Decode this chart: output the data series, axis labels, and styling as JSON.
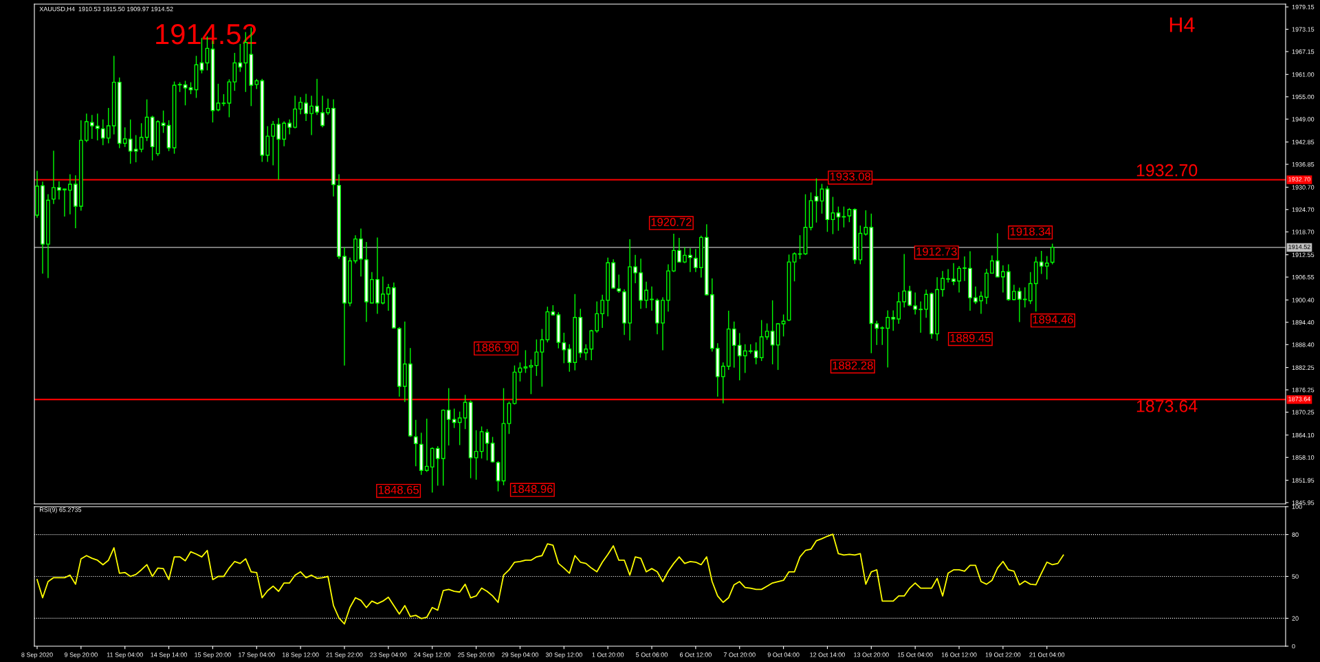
{
  "chart_data": [
    {
      "type": "candlestick",
      "title": "XAUUSD,H4  1910.53 1915.50 1909.97 1914.52",
      "color": "#00ff00",
      "categories": [
        null,
        null,
        null,
        null,
        null,
        null,
        null,
        null,
        null,
        null,
        null,
        null,
        null,
        null,
        null,
        null,
        null,
        null,
        null,
        null,
        null,
        null,
        null,
        null,
        null,
        null,
        null,
        null,
        null,
        null,
        null,
        null,
        null,
        null,
        null,
        null,
        null,
        null,
        null,
        null,
        null,
        null,
        null,
        null,
        null,
        null,
        null,
        null,
        null,
        null,
        null,
        null,
        null,
        null,
        null,
        null,
        null,
        null,
        null,
        null,
        null,
        null,
        null,
        null,
        null,
        null,
        null,
        null,
        null,
        null,
        null,
        null,
        null,
        null,
        null,
        null,
        null,
        null,
        null,
        null,
        null,
        null,
        null,
        null,
        null,
        null,
        null,
        null,
        null,
        null,
        null,
        null,
        null,
        null,
        null,
        null,
        null,
        null,
        null,
        null,
        null,
        null,
        null,
        null,
        null,
        null,
        null,
        null,
        null,
        null,
        null,
        null,
        null,
        null,
        null,
        null,
        null,
        null,
        null,
        null,
        null,
        null,
        null,
        null,
        null,
        null,
        null,
        null,
        null,
        null,
        null,
        null,
        null,
        null,
        null,
        null,
        null,
        null,
        null,
        null,
        null,
        null,
        null,
        null,
        null,
        null,
        null,
        null,
        null,
        null,
        null,
        null,
        null,
        null,
        null,
        null,
        null,
        null,
        null,
        null,
        null,
        null,
        null,
        null,
        null,
        null,
        null,
        null,
        null,
        null,
        null,
        null,
        null,
        null,
        null,
        null,
        null,
        null,
        null,
        null,
        null,
        null,
        null,
        null,
        null,
        null,
        null,
        null,
        null,
        null,
        null,
        null,
        null,
        null,
        null,
        null,
        null,
        null,
        null,
        null,
        null,
        null,
        null,
        null,
        null,
        null,
        null,
        null,
        null,
        null,
        null,
        null,
        null,
        null,
        null,
        null,
        null,
        null,
        null,
        null,
        null,
        null,
        null,
        null,
        null,
        null,
        null,
        null
      ],
      "ohlc": [
        [
          1923.2,
          1935.1,
          1922.5,
          1931.0
        ],
        [
          1931.1,
          1932.2,
          1907.5,
          1915.4
        ],
        [
          1915.4,
          1928.8,
          1906.3,
          1927.2
        ],
        [
          1927.5,
          1940.5,
          1926.2,
          1930.6
        ],
        [
          1930.6,
          1932.3,
          1927.4,
          1929.9
        ],
        [
          1930.2,
          1930.3,
          1922.8,
          1930.0
        ],
        [
          1929.9,
          1934.2,
          1923.4,
          1931.5
        ],
        [
          1931.5,
          1933.9,
          1919.7,
          1925.6
        ],
        [
          1925.6,
          1948.7,
          1924.4,
          1943.3
        ],
        [
          1943.3,
          1950.5,
          1942.8,
          1948.3
        ],
        [
          1948.1,
          1950.1,
          1943.7,
          1947.2
        ],
        [
          1947.1,
          1950.5,
          1943.3,
          1946.5
        ],
        [
          1946.4,
          1948.9,
          1942.0,
          1943.9
        ],
        [
          1943.9,
          1952.0,
          1942.5,
          1947.2
        ],
        [
          1947.2,
          1966.0,
          1944.9,
          1958.9
        ],
        [
          1958.9,
          1960.2,
          1941.2,
          1942.5
        ],
        [
          1942.5,
          1946.8,
          1941.5,
          1943.7
        ],
        [
          1943.6,
          1948.9,
          1937.0,
          1940.4
        ],
        [
          1940.9,
          1944.7,
          1937.4,
          1940.4
        ],
        [
          1940.9,
          1947.9,
          1940.1,
          1944.1
        ],
        [
          1944.1,
          1954.3,
          1943.1,
          1949.5
        ],
        [
          1949.5,
          1949.9,
          1937.9,
          1941.6
        ],
        [
          1939.7,
          1948.7,
          1939.1,
          1948.3
        ],
        [
          1947.9,
          1951.3,
          1945.3,
          1947.3
        ],
        [
          1947.3,
          1948.7,
          1940.4,
          1941.3
        ],
        [
          1941.3,
          1959.1,
          1939.7,
          1958.1
        ],
        [
          1958.3,
          1958.9,
          1956.3,
          1958.2
        ],
        [
          1958.2,
          1959.3,
          1952.7,
          1957.4
        ],
        [
          1957.4,
          1958.9,
          1955.7,
          1956.9
        ],
        [
          1956.9,
          1966.0,
          1954.7,
          1963.6
        ],
        [
          1964.1,
          1970.8,
          1961.3,
          1962.2
        ],
        [
          1964.1,
          1971.2,
          1962.1,
          1968.0
        ],
        [
          1967.8,
          1970.0,
          1948.1,
          1951.3
        ],
        [
          1951.5,
          1958.5,
          1951.1,
          1953.3
        ],
        [
          1953.3,
          1955.7,
          1952.5,
          1953.2
        ],
        [
          1953.3,
          1959.7,
          1949.5,
          1959.0
        ],
        [
          1959.0,
          1966.8,
          1956.6,
          1964.1
        ],
        [
          1964.1,
          1969.2,
          1961.7,
          1963.0
        ],
        [
          1964.1,
          1972.4,
          1956.3,
          1969.6
        ],
        [
          1966.4,
          1973.6,
          1952.5,
          1958.1
        ],
        [
          1958.3,
          1959.8,
          1957.1,
          1959.3
        ],
        [
          1959.3,
          1959.8,
          1937.5,
          1939.3
        ],
        [
          1939.3,
          1947.1,
          1937.5,
          1944.4
        ],
        [
          1944.4,
          1948.5,
          1936.6,
          1947.6
        ],
        [
          1947.6,
          1949.3,
          1932.7,
          1943.6
        ],
        [
          1943.6,
          1948.4,
          1941.7,
          1947.9
        ],
        [
          1947.9,
          1948.9,
          1944.9,
          1946.8
        ],
        [
          1946.8,
          1955.3,
          1946.5,
          1951.7
        ],
        [
          1951.7,
          1954.9,
          1950.3,
          1953.5
        ],
        [
          1953.3,
          1955.8,
          1948.5,
          1950.5
        ],
        [
          1950.5,
          1955.3,
          1944.7,
          1952.5
        ],
        [
          1952.5,
          1959.8,
          1950.1,
          1950.9
        ],
        [
          1950.7,
          1955.3,
          1946.8,
          1947.3
        ],
        [
          1950.7,
          1954.5,
          1950.1,
          1951.9
        ],
        [
          1951.9,
          1954.3,
          1928.2,
          1931.4
        ],
        [
          1931.2,
          1934.2,
          1911.4,
          1912.1
        ],
        [
          1912.1,
          1914.6,
          1882.8,
          1899.6
        ],
        [
          1899.6,
          1911.8,
          1898.7,
          1910.9
        ],
        [
          1910.9,
          1917.8,
          1910.2,
          1916.8
        ],
        [
          1916.8,
          1919.6,
          1906.7,
          1911.4
        ],
        [
          1911.2,
          1916.0,
          1894.5,
          1899.9
        ],
        [
          1899.6,
          1907.9,
          1899.5,
          1905.9
        ],
        [
          1905.9,
          1917.2,
          1896.7,
          1899.6
        ],
        [
          1899.6,
          1906.7,
          1899.2,
          1902.0
        ],
        [
          1902.0,
          1904.7,
          1897.5,
          1903.7
        ],
        [
          1903.7,
          1905.1,
          1892.7,
          1892.9
        ],
        [
          1892.7,
          1893.1,
          1874.4,
          1877.2
        ],
        [
          1877.2,
          1894.6,
          1873.0,
          1883.2
        ],
        [
          1883.2,
          1887.5,
          1863.6,
          1863.9
        ],
        [
          1863.6,
          1868.2,
          1855.7,
          1861.8
        ],
        [
          1861.6,
          1864.7,
          1853.4,
          1854.6
        ],
        [
          1854.6,
          1868.5,
          1854.2,
          1855.7
        ],
        [
          1855.5,
          1860.8,
          1848.65,
          1860.5
        ],
        [
          1860.5,
          1861.1,
          1850.5,
          1857.8
        ],
        [
          1857.8,
          1871.0,
          1850.5,
          1870.8
        ],
        [
          1870.8,
          1876.7,
          1861.3,
          1868.3
        ],
        [
          1868.3,
          1871.2,
          1866.0,
          1867.5
        ],
        [
          1867.5,
          1870.4,
          1861.4,
          1868.7
        ],
        [
          1868.7,
          1874.9,
          1865.7,
          1872.9
        ],
        [
          1872.9,
          1873.4,
          1852.5,
          1858.0
        ],
        [
          1858.0,
          1865.4,
          1852.1,
          1859.7
        ],
        [
          1859.7,
          1866.4,
          1857.8,
          1865.0
        ],
        [
          1864.8,
          1865.7,
          1857.3,
          1861.9
        ],
        [
          1861.9,
          1863.6,
          1856.7,
          1856.9
        ],
        [
          1856.7,
          1857.1,
          1848.96,
          1851.8
        ],
        [
          1851.8,
          1876.7,
          1850.6,
          1867.2
        ],
        [
          1867.2,
          1873.1,
          1864.4,
          1872.6
        ],
        [
          1872.6,
          1882.8,
          1872.3,
          1881.0
        ],
        [
          1881.0,
          1883.6,
          1878.5,
          1882.1
        ],
        [
          1882.1,
          1886.9,
          1880.8,
          1882.4
        ],
        [
          1882.4,
          1884.4,
          1875.1,
          1882.8
        ],
        [
          1882.8,
          1889.8,
          1880.0,
          1886.4
        ],
        [
          1886.4,
          1892.6,
          1877.1,
          1889.7
        ],
        [
          1889.7,
          1898.6,
          1889.0,
          1897.2
        ],
        [
          1897.2,
          1899.0,
          1896.2,
          1896.4
        ],
        [
          1896.4,
          1897.1,
          1887.4,
          1889.0
        ],
        [
          1888.9,
          1891.6,
          1883.4,
          1887.0
        ],
        [
          1887.2,
          1888.5,
          1881.1,
          1883.6
        ],
        [
          1883.6,
          1902.0,
          1881.5,
          1895.7
        ],
        [
          1895.7,
          1898.0,
          1884.9,
          1886.2
        ],
        [
          1886.2,
          1888.5,
          1884.2,
          1887.2
        ],
        [
          1887.2,
          1892.4,
          1884.2,
          1892.1
        ],
        [
          1892.1,
          1900.0,
          1891.6,
          1896.7
        ],
        [
          1896.7,
          1901.8,
          1892.9,
          1900.3
        ],
        [
          1900.3,
          1911.8,
          1896.0,
          1910.4
        ],
        [
          1910.4,
          1911.3,
          1903.4,
          1903.6
        ],
        [
          1903.4,
          1907.2,
          1902.3,
          1902.8
        ],
        [
          1902.6,
          1903.3,
          1891.0,
          1894.2
        ],
        [
          1894.2,
          1916.7,
          1889.5,
          1909.3
        ],
        [
          1909.3,
          1912.5,
          1904.9,
          1907.7
        ],
        [
          1907.7,
          1911.5,
          1898.0,
          1900.3
        ],
        [
          1900.3,
          1905.3,
          1898.2,
          1903.0
        ],
        [
          1900.6,
          1904.0,
          1897.5,
          1900.5
        ],
        [
          1900.3,
          1900.8,
          1891.2,
          1894.2
        ],
        [
          1894.2,
          1901.1,
          1886.9,
          1900.3
        ],
        [
          1900.3,
          1910.0,
          1897.3,
          1908.2
        ],
        [
          1908.2,
          1918.2,
          1907.9,
          1913.7
        ],
        [
          1913.7,
          1917.1,
          1910.5,
          1910.6
        ],
        [
          1910.6,
          1914.6,
          1910.3,
          1912.4
        ],
        [
          1912.4,
          1914.3,
          1907.9,
          1911.8
        ],
        [
          1911.6,
          1914.1,
          1907.9,
          1909.1
        ],
        [
          1909.1,
          1917.7,
          1906.4,
          1917.2
        ],
        [
          1917.2,
          1920.72,
          1901.6,
          1901.8
        ],
        [
          1901.8,
          1906.2,
          1886.5,
          1887.4
        ],
        [
          1887.4,
          1888.8,
          1874.4,
          1879.8
        ],
        [
          1879.8,
          1883.6,
          1872.6,
          1882.6
        ],
        [
          1882.6,
          1897.5,
          1881.6,
          1892.6
        ],
        [
          1892.6,
          1894.6,
          1882.2,
          1888.2
        ],
        [
          1888.2,
          1891.5,
          1878.8,
          1885.4
        ],
        [
          1885.4,
          1888.5,
          1880.8,
          1886.7
        ],
        [
          1886.7,
          1888.5,
          1886.0,
          1886.6
        ],
        [
          1886.7,
          1889.0,
          1883.1,
          1884.9
        ],
        [
          1884.9,
          1895.0,
          1884.0,
          1890.5
        ],
        [
          1890.5,
          1894.1,
          1889.7,
          1892.0
        ],
        [
          1892.0,
          1900.3,
          1883.1,
          1888.3
        ],
        [
          1888.3,
          1894.2,
          1881.6,
          1894.0
        ],
        [
          1894.0,
          1896.5,
          1890.6,
          1894.7
        ],
        [
          1895.0,
          1912.6,
          1894.7,
          1910.6
        ],
        [
          1910.6,
          1913.2,
          1905.4,
          1912.8
        ],
        [
          1912.8,
          1917.8,
          1911.4,
          1912.7
        ],
        [
          1912.8,
          1928.8,
          1912.5,
          1919.9
        ],
        [
          1919.9,
          1929.3,
          1919.1,
          1927.1
        ],
        [
          1928.2,
          1933.08,
          1921.2,
          1927.0
        ],
        [
          1927.0,
          1931.6,
          1923.6,
          1930.2
        ],
        [
          1930.2,
          1931.0,
          1918.7,
          1922.0
        ],
        [
          1922.0,
          1928.1,
          1918.1,
          1923.8
        ],
        [
          1923.8,
          1925.5,
          1919.0,
          1922.7
        ],
        [
          1922.8,
          1925.5,
          1919.9,
          1922.7
        ],
        [
          1923.0,
          1925.1,
          1921.3,
          1924.7
        ],
        [
          1924.7,
          1925.0,
          1910.1,
          1911.2
        ],
        [
          1911.2,
          1920.4,
          1910.0,
          1918.3
        ],
        [
          1918.1,
          1924.5,
          1917.7,
          1919.9
        ],
        [
          1919.9,
          1923.6,
          1886.1,
          1894.1
        ],
        [
          1894.0,
          1894.8,
          1888.3,
          1892.8
        ],
        [
          1892.8,
          1893.3,
          1888.3,
          1892.9
        ],
        [
          1892.8,
          1897.6,
          1882.28,
          1895.7
        ],
        [
          1895.7,
          1897.6,
          1892.1,
          1895.3
        ],
        [
          1895.3,
          1902.5,
          1894.0,
          1899.9
        ],
        [
          1899.9,
          1912.73,
          1898.4,
          1902.8
        ],
        [
          1902.8,
          1904.2,
          1898.7,
          1899.0
        ],
        [
          1898.8,
          1902.4,
          1896.5,
          1897.9
        ],
        [
          1897.9,
          1900.0,
          1891.6,
          1897.8
        ],
        [
          1897.9,
          1903.2,
          1895.6,
          1901.9
        ],
        [
          1902.1,
          1902.4,
          1890.0,
          1891.3
        ],
        [
          1891.3,
          1906.5,
          1889.45,
          1903.2
        ],
        [
          1903.2,
          1908.2,
          1901.3,
          1906.2
        ],
        [
          1906.1,
          1908.7,
          1905.1,
          1906.0
        ],
        [
          1906.0,
          1910.3,
          1904.4,
          1905.4
        ],
        [
          1905.5,
          1909.5,
          1902.4,
          1908.9
        ],
        [
          1909.0,
          1912.1,
          1905.5,
          1908.9
        ],
        [
          1908.9,
          1913.5,
          1897.5,
          1901.0
        ],
        [
          1901.0,
          1904.0,
          1899.3,
          1899.9
        ],
        [
          1900.2,
          1902.7,
          1896.7,
          1901.4
        ],
        [
          1901.1,
          1908.8,
          1899.3,
          1907.6
        ],
        [
          1907.6,
          1912.4,
          1907.5,
          1910.9
        ],
        [
          1910.9,
          1918.34,
          1906.5,
          1906.6
        ],
        [
          1906.6,
          1909.7,
          1902.4,
          1908.0
        ],
        [
          1908.0,
          1910.0,
          1900.2,
          1900.5
        ],
        [
          1900.5,
          1904.5,
          1900.3,
          1902.7
        ],
        [
          1902.7,
          1903.7,
          1894.46,
          1900.6
        ],
        [
          1900.5,
          1903.8,
          1898.4,
          1900.6
        ],
        [
          1900.2,
          1907.9,
          1899.3,
          1904.8
        ],
        [
          1904.8,
          1912.0,
          1897.3,
          1910.6
        ],
        [
          1910.6,
          1913.6,
          1907.4,
          1909.5
        ],
        [
          1909.5,
          1912.2,
          1905.9,
          1910.3
        ],
        [
          1910.53,
          1915.5,
          1909.97,
          1914.52
        ],
        null,
        null,
        null,
        null,
        null,
        null,
        null,
        null,
        null,
        null,
        null,
        null,
        null,
        null,
        null,
        null,
        null,
        null,
        null,
        null,
        null,
        null,
        null,
        null,
        null,
        null,
        null,
        null,
        null,
        null,
        null,
        null,
        null,
        null,
        null,
        null,
        null,
        null,
        null,
        null,
        null,
        null
      ],
      "ylim": [
        1845.6,
        1979.9
      ],
      "yticks": [
        1979.15,
        1973.15,
        1967.15,
        {
          "value": 1961.0,
          "label": "1961.00"
        },
        {
          "value": 1955.0,
          "label": "1955.00"
        },
        {
          "value": 1949.0,
          "label": "1949.00"
        },
        1942.85,
        1936.85,
        {
          "value": 1930.7,
          "label": "1930.70"
        },
        {
          "value": 1924.7,
          "label": "1924.70"
        },
        {
          "value": 1918.7,
          "label": "1918.70"
        },
        1912.55,
        1906.55,
        {
          "value": 1900.4,
          "label": "1900.40"
        },
        {
          "value": 1894.4,
          "label": "1894.40"
        },
        {
          "value": 1888.4,
          "label": "1888.40"
        },
        1882.25,
        1876.25,
        1870.25,
        {
          "value": 1864.1,
          "label": "1864.10"
        },
        {
          "value": 1858.1,
          "label": "1858.10"
        },
        1851.95,
        1845.95
      ],
      "tick_labels": "y",
      "ref_lines": [
        {
          "axis": "y",
          "value": 1932.7,
          "label": "1932.70",
          "color": "#ff0000"
        },
        {
          "axis": "y",
          "value": 1914.52,
          "label": "1914.52",
          "color": "#c0c0c0"
        },
        {
          "axis": "y",
          "value": 1873.64,
          "label": "1873.64",
          "color": "#ff0000"
        }
      ],
      "annotations": [
        "1914.52",
        "H4",
        {
          "text": "1932.70",
          "y": 1932.7
        },
        {
          "text": "1873.64",
          "y": 1873.64
        },
        "1848.65",
        "1848.96",
        "1920.72",
        "1886.90",
        "1933.08",
        "1912.73",
        "1918.34",
        "1882.28",
        "1889.45",
        "1894.46"
      ]
    },
    {
      "type": "line",
      "title": "RSI(9) 65.2735",
      "categories": [
        "8 Sep 2020",
        null,
        null,
        null,
        null,
        null,
        null,
        null,
        "9 Sep 20:00",
        null,
        null,
        null,
        null,
        null,
        null,
        null,
        "11 Sep 04:00",
        null,
        null,
        null,
        null,
        null,
        null,
        null,
        "14 Sep 14:00",
        null,
        null,
        null,
        null,
        null,
        null,
        null,
        "15 Sep 20:00",
        null,
        null,
        null,
        null,
        null,
        null,
        null,
        "17 Sep 04:00",
        null,
        null,
        null,
        null,
        null,
        null,
        null,
        "18 Sep 12:00",
        null,
        null,
        null,
        null,
        null,
        null,
        null,
        "21 Sep 22:00",
        null,
        null,
        null,
        null,
        null,
        null,
        null,
        "23 Sep 04:00",
        null,
        null,
        null,
        null,
        null,
        null,
        null,
        "24 Sep 12:00",
        null,
        null,
        null,
        null,
        null,
        null,
        null,
        "25 Sep 20:00",
        null,
        null,
        null,
        null,
        null,
        null,
        null,
        "29 Sep 04:00",
        null,
        null,
        null,
        null,
        null,
        null,
        null,
        "30 Sep 12:00",
        null,
        null,
        null,
        null,
        null,
        null,
        null,
        "1 Oct 20:00",
        null,
        null,
        null,
        null,
        null,
        null,
        null,
        "5 Oct 06:00",
        null,
        null,
        null,
        null,
        null,
        null,
        null,
        "6 Oct 12:00",
        null,
        null,
        null,
        null,
        null,
        null,
        null,
        "7 Oct 20:00",
        null,
        null,
        null,
        null,
        null,
        null,
        null,
        "9 Oct 04:00",
        null,
        null,
        null,
        null,
        null,
        null,
        null,
        "12 Oct 14:00",
        null,
        null,
        null,
        null,
        null,
        null,
        null,
        "13 Oct 20:00",
        null,
        null,
        null,
        null,
        null,
        null,
        null,
        "15 Oct 04:00",
        null,
        null,
        null,
        null,
        null,
        null,
        null,
        "16 Oct 12:00",
        null,
        null,
        null,
        null,
        null,
        null,
        null,
        "19 Oct 22:00",
        null,
        null,
        null,
        null,
        null,
        null,
        null,
        "21 Oct 04:00",
        null,
        null,
        null,
        null,
        null,
        null,
        null,
        null,
        null,
        null,
        null,
        null,
        null,
        null,
        null,
        null,
        null,
        null,
        null,
        null,
        null,
        null,
        null,
        null,
        null,
        null,
        null,
        null,
        null,
        null,
        null,
        null,
        null,
        null,
        null,
        null,
        null,
        null,
        null,
        null,
        null,
        null,
        null
      ],
      "series": [
        {
          "color": "#ffff00",
          "values": [
            47.7,
            34.7,
            46.3,
            49.1,
            49.1,
            49.1,
            50.9,
            44.4,
            62.6,
            64.9,
            63.0,
            61.6,
            58.4,
            61.6,
            70.5,
            52.3,
            52.8,
            50.0,
            51.4,
            54.7,
            58.4,
            50.0,
            56.0,
            55.6,
            47.7,
            64.0,
            64.0,
            61.2,
            67.7,
            66.0,
            64.0,
            68.6,
            47.7,
            50.0,
            50.0,
            56.0,
            60.7,
            59.3,
            62.6,
            53.3,
            52.8,
            34.7,
            39.8,
            43.0,
            39.3,
            45.3,
            45.3,
            50.9,
            53.3,
            49.1,
            50.9,
            48.6,
            49.1,
            50.0,
            29.1,
            20.2,
            16.0,
            27.7,
            34.7,
            32.8,
            27.7,
            32.3,
            30.5,
            32.3,
            35.1,
            29.1,
            23.0,
            29.1,
            21.2,
            22.1,
            19.8,
            20.7,
            27.7,
            25.8,
            39.8,
            40.7,
            39.3,
            38.8,
            44.4,
            34.7,
            36.0,
            41.6,
            39.3,
            36.0,
            31.4,
            50.9,
            54.7,
            60.2,
            60.7,
            61.6,
            61.6,
            64.0,
            64.9,
            73.3,
            72.3,
            59.3,
            56.0,
            52.3,
            64.9,
            60.2,
            59.3,
            56.0,
            53.3,
            60.2,
            65.8,
            71.9,
            61.6,
            61.6,
            50.9,
            64.0,
            63.0,
            53.3,
            55.6,
            53.3,
            46.3,
            53.7,
            59.3,
            64.0,
            59.3,
            60.7,
            60.2,
            58.4,
            64.0,
            46.3,
            36.0,
            31.4,
            34.7,
            44.0,
            46.3,
            42.1,
            41.6,
            40.7,
            40.7,
            43.0,
            45.3,
            46.3,
            47.2,
            53.3,
            53.3,
            64.0,
            68.6,
            69.5,
            75.6,
            77.0,
            78.8,
            80.2,
            66.3,
            65.3,
            65.8,
            65.3,
            66.3,
            44.4,
            53.3,
            54.7,
            32.3,
            32.3,
            32.3,
            36.0,
            36.0,
            41.6,
            45.3,
            41.6,
            41.6,
            41.6,
            48.6,
            36.0,
            52.3,
            54.7,
            54.7,
            53.7,
            57.9,
            57.9,
            46.3,
            44.4,
            47.2,
            56.0,
            60.7,
            54.7,
            53.7,
            44.0,
            46.7,
            44.4,
            44.0,
            52.3,
            60.2,
            58.4,
            59.3,
            65.3,
            null,
            null,
            null,
            null,
            null,
            null,
            null,
            null,
            null,
            null,
            null,
            null,
            null,
            null,
            null,
            null,
            null,
            null,
            null,
            null,
            null,
            null,
            null,
            null,
            null,
            null,
            null,
            null,
            null,
            null,
            null,
            null,
            null,
            null,
            null,
            null,
            null,
            null,
            null,
            null
          ]
        }
      ],
      "ylim": [
        0,
        100
      ],
      "yticks": [
        0,
        20,
        50,
        80,
        100
      ],
      "ref_lines": [
        {
          "axis": "y",
          "value": 80,
          "color": "#ffffff",
          "line_style": "dotted"
        },
        {
          "axis": "y",
          "value": 50,
          "color": "#ffffff",
          "line_style": "dotted"
        },
        {
          "axis": "y",
          "value": 20,
          "color": "#ffffff",
          "line_style": "dotted"
        }
      ]
    }
  ]
}
